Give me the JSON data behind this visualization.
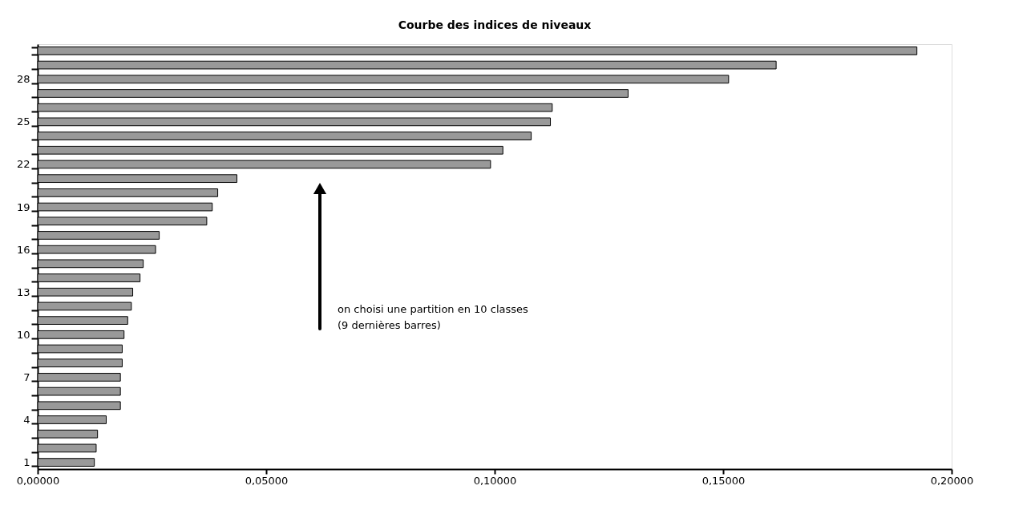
{
  "chart_data": {
    "type": "bar",
    "orientation": "horizontal",
    "title": "Courbe des indices de niveaux",
    "categories": [
      null,
      null,
      "28",
      null,
      null,
      "25",
      null,
      null,
      "22",
      null,
      null,
      "19",
      null,
      null,
      "16",
      null,
      null,
      "13",
      null,
      null,
      "10",
      null,
      null,
      "7",
      null,
      null,
      "4",
      null,
      null,
      "1"
    ],
    "values": [
      0.1924,
      0.1616,
      0.1512,
      0.1292,
      0.1126,
      0.1122,
      0.108,
      0.1018,
      0.0991,
      0.0436,
      0.0394,
      0.0382,
      0.037,
      0.0266,
      0.0258,
      0.0231,
      0.0224,
      0.0208,
      0.0205,
      0.0197,
      0.0189,
      0.0185,
      0.0185,
      0.0181,
      0.0181,
      0.0181,
      0.015,
      0.0131,
      0.0128,
      0.0124
    ],
    "color": "#999999",
    "xlim": [
      0,
      0.2
    ],
    "xticks": [
      {
        "value": 0,
        "label": "0,00000"
      },
      {
        "value": 0.05,
        "label": "0,05000"
      },
      {
        "value": 0.1,
        "label": "0,10000"
      },
      {
        "value": 0.15,
        "label": "0,15000"
      },
      {
        "value": 0.2,
        "label": "0,20000"
      }
    ],
    "annotations": [
      "on choisi une partition en 10 classes\n(9 dernières barres)"
    ]
  }
}
